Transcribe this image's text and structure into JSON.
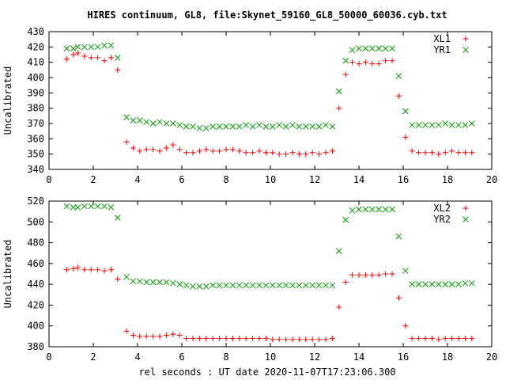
{
  "chart_data": {
    "title": "HIRES continuum, GL8, file:Skynet_59160_GL8_50000_60036.cyb.txt",
    "xlabel": "rel seconds : UT date 2020-11-07T17:23:06.300",
    "colors": {
      "series_a": "#ff0000",
      "series_b": "#00a000"
    },
    "charts": [
      {
        "type": "scatter",
        "ylabel": "Uncalibrated",
        "xlim": [
          0,
          20
        ],
        "ylim": [
          340,
          430
        ],
        "xticks": [
          0,
          2,
          4,
          6,
          8,
          10,
          12,
          14,
          16,
          18,
          20
        ],
        "yticks": [
          340,
          350,
          360,
          370,
          380,
          390,
          400,
          410,
          420,
          430
        ],
        "legend_position": "top-right",
        "series": [
          {
            "name": "XL1",
            "marker": "plus",
            "color_key": "series_a",
            "x": [
              0.8,
              1.1,
              1.3,
              1.6,
              1.9,
              2.2,
              2.5,
              2.8,
              3.1,
              3.3,
              3.5,
              3.8,
              4.1,
              4.4,
              4.7,
              5.0,
              5.3,
              5.6,
              5.9,
              6.2,
              6.5,
              6.8,
              7.1,
              7.4,
              7.7,
              8.0,
              8.3,
              8.6,
              8.9,
              9.2,
              9.5,
              9.8,
              10.1,
              10.4,
              10.7,
              11.0,
              11.3,
              11.6,
              11.9,
              12.2,
              12.5,
              12.8,
              13.1,
              13.4,
              13.7,
              14.0,
              14.3,
              14.6,
              14.9,
              15.2,
              15.5,
              15.8,
              16.1,
              16.4,
              16.7,
              17.0,
              17.3,
              17.6,
              17.9,
              18.2,
              18.5,
              18.8,
              19.1
            ],
            "y": [
              412,
              415,
              416,
              414,
              413,
              413,
              411,
              413,
              405,
              null,
              358,
              354,
              352,
              353,
              353,
              352,
              354,
              356,
              353,
              351,
              351,
              352,
              353,
              352,
              352,
              353,
              353,
              352,
              351,
              351,
              352,
              351,
              351,
              350,
              350,
              351,
              350,
              350,
              351,
              350,
              351,
              352,
              380,
              402,
              410,
              409,
              410,
              409,
              409,
              411,
              411,
              388,
              361,
              352,
              351,
              351,
              351,
              350,
              351,
              352,
              351,
              351,
              351
            ]
          },
          {
            "name": "YR1",
            "marker": "cross",
            "color_key": "series_b",
            "x": [
              0.8,
              1.1,
              1.3,
              1.6,
              1.9,
              2.2,
              2.5,
              2.8,
              3.1,
              3.3,
              3.5,
              3.8,
              4.1,
              4.4,
              4.7,
              5.0,
              5.3,
              5.6,
              5.9,
              6.2,
              6.5,
              6.8,
              7.1,
              7.4,
              7.7,
              8.0,
              8.3,
              8.6,
              8.9,
              9.2,
              9.5,
              9.8,
              10.1,
              10.4,
              10.7,
              11.0,
              11.3,
              11.6,
              11.9,
              12.2,
              12.5,
              12.8,
              13.1,
              13.4,
              13.7,
              14.0,
              14.3,
              14.6,
              14.9,
              15.2,
              15.5,
              15.8,
              16.1,
              16.4,
              16.7,
              17.0,
              17.3,
              17.6,
              17.9,
              18.2,
              18.5,
              18.8,
              19.1
            ],
            "y": [
              419,
              419,
              420,
              420,
              420,
              420,
              421,
              421,
              413,
              null,
              374,
              372,
              372,
              371,
              370,
              371,
              370,
              370,
              369,
              368,
              368,
              367,
              367,
              368,
              368,
              368,
              368,
              368,
              369,
              368,
              369,
              368,
              368,
              369,
              368,
              369,
              368,
              368,
              368,
              368,
              369,
              368,
              391,
              411,
              418,
              419,
              419,
              419,
              419,
              419,
              419,
              401,
              378,
              369,
              369,
              369,
              369,
              369,
              370,
              369,
              369,
              369,
              370
            ]
          }
        ]
      },
      {
        "type": "scatter",
        "ylabel": "Uncalibrated",
        "xlim": [
          0,
          20
        ],
        "ylim": [
          380,
          520
        ],
        "xticks": [
          0,
          2,
          4,
          6,
          8,
          10,
          12,
          14,
          16,
          18,
          20
        ],
        "yticks": [
          380,
          400,
          420,
          440,
          460,
          480,
          500,
          520
        ],
        "legend_position": "top-right",
        "series": [
          {
            "name": "XL2",
            "marker": "plus",
            "color_key": "series_a",
            "x": [
              0.8,
              1.1,
              1.3,
              1.6,
              1.9,
              2.2,
              2.5,
              2.8,
              3.1,
              3.3,
              3.5,
              3.8,
              4.1,
              4.4,
              4.7,
              5.0,
              5.3,
              5.6,
              5.9,
              6.2,
              6.5,
              6.8,
              7.1,
              7.4,
              7.7,
              8.0,
              8.3,
              8.6,
              8.9,
              9.2,
              9.5,
              9.8,
              10.1,
              10.4,
              10.7,
              11.0,
              11.3,
              11.6,
              11.9,
              12.2,
              12.5,
              12.8,
              13.1,
              13.4,
              13.7,
              14.0,
              14.3,
              14.6,
              14.9,
              15.2,
              15.5,
              15.8,
              16.1,
              16.4,
              16.7,
              17.0,
              17.3,
              17.6,
              17.9,
              18.2,
              18.5,
              18.8,
              19.1
            ],
            "y": [
              454,
              455,
              456,
              454,
              454,
              454,
              453,
              454,
              445,
              null,
              395,
              391,
              390,
              390,
              390,
              390,
              391,
              392,
              391,
              388,
              388,
              388,
              388,
              388,
              388,
              388,
              388,
              388,
              388,
              388,
              388,
              388,
              387,
              387,
              387,
              387,
              387,
              387,
              387,
              387,
              387,
              388,
              418,
              442,
              449,
              449,
              449,
              449,
              449,
              450,
              450,
              427,
              400,
              388,
              388,
              388,
              388,
              387,
              388,
              388,
              388,
              388,
              388
            ]
          },
          {
            "name": "YR2",
            "marker": "cross",
            "color_key": "series_b",
            "x": [
              0.8,
              1.1,
              1.3,
              1.6,
              1.9,
              2.2,
              2.5,
              2.8,
              3.1,
              3.3,
              3.5,
              3.8,
              4.1,
              4.4,
              4.7,
              5.0,
              5.3,
              5.6,
              5.9,
              6.2,
              6.5,
              6.8,
              7.1,
              7.4,
              7.7,
              8.0,
              8.3,
              8.6,
              8.9,
              9.2,
              9.5,
              9.8,
              10.1,
              10.4,
              10.7,
              11.0,
              11.3,
              11.6,
              11.9,
              12.2,
              12.5,
              12.8,
              13.1,
              13.4,
              13.7,
              14.0,
              14.3,
              14.6,
              14.9,
              15.2,
              15.5,
              15.8,
              16.1,
              16.4,
              16.7,
              17.0,
              17.3,
              17.6,
              17.9,
              18.2,
              18.5,
              18.8,
              19.1
            ],
            "y": [
              515,
              514,
              514,
              515,
              515,
              515,
              515,
              514,
              504,
              null,
              447,
              443,
              443,
              442,
              442,
              442,
              442,
              441,
              440,
              439,
              438,
              438,
              438,
              439,
              439,
              439,
              439,
              439,
              439,
              439,
              439,
              439,
              439,
              439,
              439,
              439,
              439,
              439,
              439,
              439,
              439,
              439,
              472,
              502,
              511,
              512,
              512,
              512,
              512,
              512,
              512,
              486,
              453,
              440,
              440,
              440,
              440,
              440,
              440,
              440,
              440,
              441,
              441
            ]
          }
        ]
      }
    ]
  }
}
